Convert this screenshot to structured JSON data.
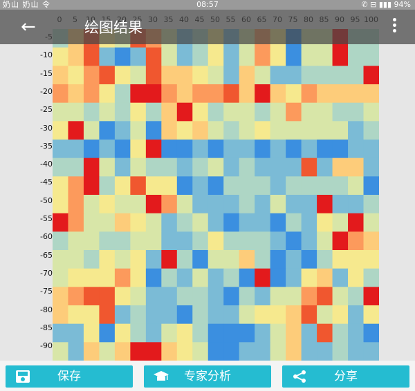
{
  "status": {
    "left_text": "奶山 奶山 令",
    "time": "08:57",
    "right_text": "✆ ⊟ ▮▮▮ 94%"
  },
  "appbar": {
    "back_icon": "arrow-left-icon",
    "title": "绘图结果",
    "menu_icon": "more-vert-icon"
  },
  "chart_data": {
    "type": "heatmap",
    "x_ticks": [
      "0",
      "5",
      "10",
      "15",
      "20",
      "25",
      "30",
      "35",
      "40",
      "45",
      "50",
      "55",
      "60",
      "65",
      "70",
      "75",
      "80",
      "85",
      "90",
      "95",
      "100"
    ],
    "y_ticks": [
      "-5",
      "-10",
      "-15",
      "-20",
      "-25",
      "-30",
      "-35",
      "-40",
      "-45",
      "-50",
      "-55",
      "-60",
      "-65",
      "-70",
      "-75",
      "-80",
      "-85",
      "-90"
    ],
    "colormap": [
      "#1c6fe0",
      "#3b8fe0",
      "#7bbbd6",
      "#aed6c5",
      "#d8e6a8",
      "#f6e98e",
      "#fdcc7a",
      "#fc9a5c",
      "#f0572f",
      "#e31a1c"
    ],
    "rows": [
      [
        3,
        6,
        8,
        5,
        4,
        8,
        7,
        4,
        2,
        3,
        5,
        2,
        4,
        7,
        5,
        1,
        4,
        4,
        9,
        3,
        3
      ],
      [
        5,
        6,
        8,
        2,
        1,
        2,
        8,
        4,
        2,
        3,
        5,
        2,
        4,
        7,
        5,
        1,
        4,
        4,
        9,
        3,
        3
      ],
      [
        6,
        5,
        7,
        8,
        5,
        4,
        8,
        6,
        6,
        5,
        4,
        2,
        6,
        4,
        2,
        2,
        3,
        3,
        3,
        3,
        9
      ],
      [
        7,
        6,
        7,
        5,
        3,
        9,
        9,
        7,
        6,
        7,
        7,
        8,
        6,
        9,
        6,
        5,
        7,
        6,
        6,
        6,
        6
      ],
      [
        4,
        4,
        3,
        4,
        3,
        5,
        3,
        6,
        9,
        5,
        3,
        4,
        4,
        3,
        4,
        7,
        4,
        4,
        3,
        3,
        4
      ],
      [
        5,
        9,
        4,
        1,
        2,
        4,
        1,
        6,
        5,
        6,
        4,
        3,
        4,
        5,
        4,
        4,
        4,
        4,
        4,
        2,
        3
      ],
      [
        2,
        2,
        1,
        2,
        1,
        5,
        9,
        1,
        1,
        2,
        1,
        2,
        2,
        1,
        2,
        1,
        2,
        1,
        1,
        2,
        2
      ],
      [
        3,
        3,
        9,
        4,
        2,
        4,
        3,
        3,
        2,
        3,
        4,
        2,
        3,
        2,
        2,
        2,
        8,
        2,
        6,
        6,
        2
      ],
      [
        5,
        7,
        9,
        3,
        5,
        8,
        5,
        5,
        1,
        2,
        1,
        3,
        3,
        3,
        2,
        3,
        3,
        3,
        3,
        4,
        1
      ],
      [
        5,
        7,
        4,
        5,
        4,
        4,
        9,
        7,
        4,
        2,
        2,
        2,
        3,
        2,
        4,
        2,
        2,
        9,
        2,
        2,
        3
      ],
      [
        9,
        7,
        4,
        4,
        6,
        5,
        4,
        2,
        3,
        4,
        2,
        1,
        2,
        2,
        1,
        3,
        2,
        5,
        4,
        9,
        4
      ],
      [
        3,
        4,
        4,
        3,
        3,
        4,
        4,
        2,
        2,
        3,
        5,
        3,
        3,
        3,
        2,
        1,
        2,
        4,
        9,
        7,
        6
      ],
      [
        4,
        4,
        3,
        5,
        4,
        5,
        2,
        9,
        3,
        1,
        4,
        4,
        6,
        3,
        1,
        2,
        1,
        3,
        5,
        5,
        5
      ],
      [
        4,
        5,
        5,
        5,
        7,
        5,
        1,
        3,
        2,
        4,
        2,
        3,
        1,
        9,
        1,
        2,
        5,
        6,
        2,
        5,
        3
      ],
      [
        6,
        7,
        8,
        8,
        5,
        4,
        2,
        2,
        3,
        3,
        2,
        1,
        3,
        2,
        4,
        4,
        7,
        8,
        4,
        3,
        9
      ],
      [
        6,
        5,
        5,
        8,
        2,
        3,
        2,
        2,
        1,
        3,
        2,
        2,
        4,
        5,
        5,
        6,
        8,
        4,
        5,
        2,
        5
      ],
      [
        2,
        2,
        5,
        1,
        5,
        3,
        2,
        4,
        5,
        3,
        1,
        1,
        1,
        2,
        4,
        6,
        2,
        8,
        3,
        2,
        1
      ],
      [
        4,
        2,
        6,
        4,
        6,
        9,
        9,
        6,
        5,
        4,
        1,
        1,
        2,
        2,
        4,
        6,
        2,
        2,
        3,
        2,
        2
      ]
    ]
  },
  "bottom": {
    "save_label": "保存",
    "save_icon": "floppy-disk-icon",
    "expert_label": "专家分析",
    "expert_icon": "graduation-cap-icon",
    "share_label": "分享",
    "share_icon": "share-icon"
  }
}
